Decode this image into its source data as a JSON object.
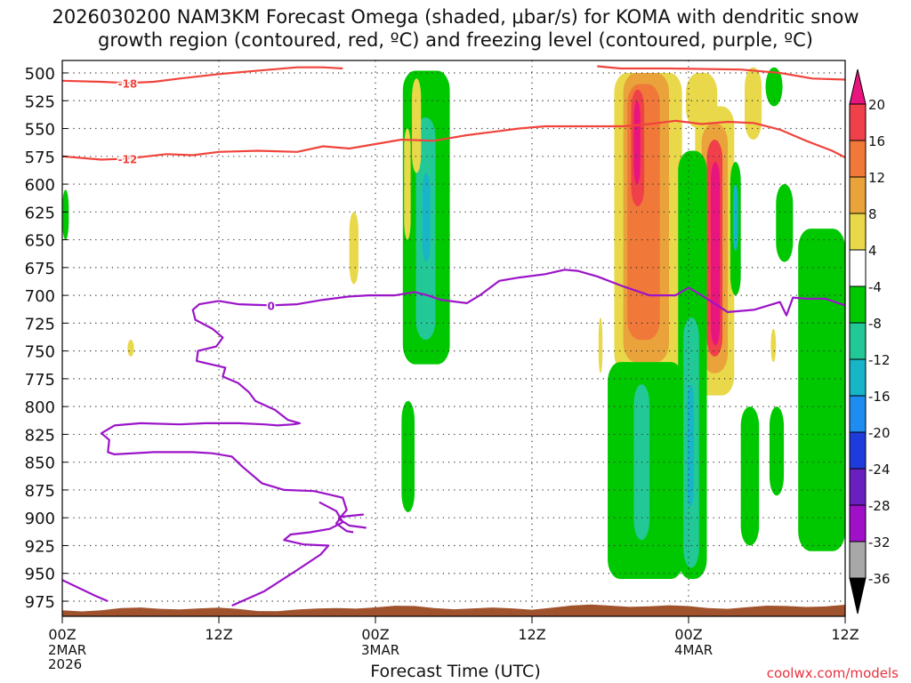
{
  "title": {
    "line1": "2026030200 NAM3KM Forecast Omega (shaded, μbar/s) for KOMA with dendritic snow",
    "line2": "growth region (contoured, red, ºC) and freezing level (contoured, purple, ºC)"
  },
  "xlabel": "Forecast Time (UTC)",
  "credit": "coolwx.com/models",
  "chart_data": {
    "type": "heatmap",
    "y_axis": {
      "label": "",
      "ticks": [
        500,
        525,
        550,
        575,
        600,
        625,
        650,
        675,
        700,
        725,
        750,
        775,
        800,
        825,
        850,
        875,
        900,
        925,
        950,
        975
      ],
      "range": [
        975,
        500
      ],
      "direction": "pressure decreasing upward",
      "grid": "dotted"
    },
    "x_axis": {
      "label": "Forecast Time (UTC)",
      "range_hours": [
        0,
        60
      ],
      "ticks": [
        {
          "hour": 0,
          "label": "00Z",
          "sub": [
            "2MAR",
            "2026"
          ]
        },
        {
          "hour": 12,
          "label": "12Z",
          "sub": []
        },
        {
          "hour": 24,
          "label": "00Z",
          "sub": [
            "3MAR"
          ]
        },
        {
          "hour": 36,
          "label": "12Z",
          "sub": []
        },
        {
          "hour": 48,
          "label": "00Z",
          "sub": [
            "4MAR"
          ]
        },
        {
          "hour": 60,
          "label": "12Z",
          "sub": []
        }
      ],
      "grid": "dotted"
    },
    "colorbar": {
      "labels": [
        20,
        16,
        12,
        8,
        4,
        -4,
        -8,
        -12,
        -16,
        -20,
        -24,
        -28,
        -32,
        -36
      ],
      "bins": [
        {
          "color": "#e8157f"
        },
        {
          "color": "#f0404a"
        },
        {
          "color": "#f07838"
        },
        {
          "color": "#e9a33a"
        },
        {
          "color": "#e8d84a"
        },
        {
          "color": "#ffffff"
        },
        {
          "color": "#00c800"
        },
        {
          "color": "#22c896"
        },
        {
          "color": "#18b4c8"
        },
        {
          "color": "#1e8cf0"
        },
        {
          "color": "#1e3cdc"
        },
        {
          "color": "#6a20c0"
        },
        {
          "color": "#a010c8"
        },
        {
          "color": "#a8a8a8"
        }
      ]
    },
    "omega_regions": [
      {
        "t0": 26.1,
        "t1": 29.7,
        "p0": 498,
        "p1": 762,
        "color": "#00c800"
      },
      {
        "t0": 27.1,
        "t1": 28.6,
        "p0": 540,
        "p1": 740,
        "color": "#22c896"
      },
      {
        "t0": 27.6,
        "t1": 28.2,
        "p0": 590,
        "p1": 670,
        "color": "#18b4c8"
      },
      {
        "t0": 26.8,
        "t1": 27.5,
        "p0": 505,
        "p1": 590,
        "color": "#e8d84a"
      },
      {
        "t0": 26.2,
        "t1": 26.7,
        "p0": 550,
        "p1": 650,
        "color": "#e8d84a"
      },
      {
        "t0": 22.0,
        "t1": 22.7,
        "p0": 625,
        "p1": 690,
        "color": "#e8d84a"
      },
      {
        "t0": 5.0,
        "t1": 5.5,
        "p0": 740,
        "p1": 755,
        "color": "#e8d84a"
      },
      {
        "t0": 26.0,
        "t1": 27.0,
        "p0": 795,
        "p1": 895,
        "color": "#00c800"
      },
      {
        "t0": 0.0,
        "t1": 0.5,
        "p0": 605,
        "p1": 650,
        "color": "#00c800"
      },
      {
        "t0": 42.3,
        "t1": 47.5,
        "p0": 500,
        "p1": 770,
        "color": "#e8d84a"
      },
      {
        "t0": 43.0,
        "t1": 46.5,
        "p0": 500,
        "p1": 760,
        "color": "#e9a33a"
      },
      {
        "t0": 43.3,
        "t1": 45.8,
        "p0": 510,
        "p1": 740,
        "color": "#f07838"
      },
      {
        "t0": 43.6,
        "t1": 44.6,
        "p0": 515,
        "p1": 620,
        "color": "#f0404a"
      },
      {
        "t0": 43.8,
        "t1": 44.3,
        "p0": 525,
        "p1": 600,
        "color": "#e8157f"
      },
      {
        "t0": 41.8,
        "t1": 47.6,
        "p0": 760,
        "p1": 955,
        "color": "#00c800"
      },
      {
        "t0": 43.8,
        "t1": 45.0,
        "p0": 780,
        "p1": 920,
        "color": "#22c896"
      },
      {
        "t0": 47.8,
        "t1": 50.2,
        "p0": 500,
        "p1": 550,
        "color": "#e8d84a"
      },
      {
        "t0": 48.5,
        "t1": 51.5,
        "p0": 530,
        "p1": 790,
        "color": "#e8d84a"
      },
      {
        "t0": 49.0,
        "t1": 51.0,
        "p0": 545,
        "p1": 770,
        "color": "#e9a33a"
      },
      {
        "t0": 49.4,
        "t1": 50.6,
        "p0": 560,
        "p1": 755,
        "color": "#f0404a"
      },
      {
        "t0": 49.7,
        "t1": 50.4,
        "p0": 580,
        "p1": 745,
        "color": "#e8157f"
      },
      {
        "t0": 47.2,
        "t1": 49.4,
        "p0": 570,
        "p1": 955,
        "color": "#00c800"
      },
      {
        "t0": 47.6,
        "t1": 48.8,
        "p0": 720,
        "p1": 945,
        "color": "#22c896"
      },
      {
        "t0": 47.9,
        "t1": 48.4,
        "p0": 780,
        "p1": 890,
        "color": "#18b4c8"
      },
      {
        "t0": 51.2,
        "t1": 52.0,
        "p0": 580,
        "p1": 700,
        "color": "#00c800"
      },
      {
        "t0": 51.4,
        "t1": 51.8,
        "p0": 600,
        "p1": 660,
        "color": "#18b4c8"
      },
      {
        "t0": 52.3,
        "t1": 53.6,
        "p0": 495,
        "p1": 560,
        "color": "#e8d84a"
      },
      {
        "t0": 53.9,
        "t1": 55.2,
        "p0": 495,
        "p1": 530,
        "color": "#00c800"
      },
      {
        "t0": 54.7,
        "t1": 56.0,
        "p0": 600,
        "p1": 670,
        "color": "#00c800"
      },
      {
        "t0": 52.0,
        "t1": 53.4,
        "p0": 800,
        "p1": 925,
        "color": "#00c800"
      },
      {
        "t0": 54.2,
        "t1": 55.3,
        "p0": 800,
        "p1": 880,
        "color": "#00c800"
      },
      {
        "t0": 56.4,
        "t1": 60.0,
        "p0": 640,
        "p1": 930,
        "color": "#00c800"
      },
      {
        "t0": 54.3,
        "t1": 54.7,
        "p0": 730,
        "p1": 760,
        "color": "#e8d84a"
      },
      {
        "t0": 41.1,
        "t1": 41.4,
        "p0": 720,
        "p1": 770,
        "color": "#e8d84a"
      }
    ],
    "ground": {
      "color": "#a0522d",
      "pressure_approx": 975
    },
    "dgz_contours": [
      {
        "level": -18,
        "label": "-18",
        "color": "#f0443c",
        "points": [
          [
            0,
            507
          ],
          [
            3,
            508
          ],
          [
            5,
            509
          ],
          [
            7,
            508
          ],
          [
            9,
            505
          ],
          [
            12,
            501
          ],
          [
            14,
            499
          ],
          [
            18,
            495
          ],
          [
            20,
            495
          ],
          [
            21.5,
            496
          ]
        ]
      },
      {
        "level": -18,
        "label": "",
        "color": "#f0443c",
        "points": [
          [
            41,
            494
          ],
          [
            42.8,
            496
          ],
          [
            44,
            496
          ],
          [
            46.5,
            496
          ],
          [
            52,
            497
          ],
          [
            55,
            500
          ],
          [
            57.5,
            505
          ],
          [
            60,
            506
          ]
        ]
      },
      {
        "level": -12,
        "label": "-12",
        "color": "#f0443c",
        "points": [
          [
            0,
            575
          ],
          [
            3,
            578
          ],
          [
            5,
            577
          ],
          [
            8,
            573
          ],
          [
            10,
            574
          ],
          [
            12,
            571
          ],
          [
            15,
            570
          ],
          [
            18,
            571
          ],
          [
            20,
            566
          ],
          [
            22,
            568
          ],
          [
            24,
            564
          ],
          [
            26,
            560
          ],
          [
            28.5,
            561
          ],
          [
            31,
            556
          ],
          [
            33,
            553
          ],
          [
            35,
            550
          ],
          [
            37,
            548
          ],
          [
            40,
            548
          ],
          [
            43,
            548
          ],
          [
            45,
            546
          ],
          [
            47,
            543
          ],
          [
            49,
            546
          ],
          [
            51,
            544
          ],
          [
            53,
            545
          ],
          [
            55,
            551
          ],
          [
            57,
            561
          ],
          [
            59,
            570
          ],
          [
            60,
            576
          ]
        ]
      }
    ],
    "freezing_contours": [
      {
        "level": 0,
        "label": "0",
        "color": "#9b14c8",
        "points": [
          [
            12,
            705
          ],
          [
            13.5,
            708
          ],
          [
            16,
            709
          ],
          [
            18,
            708
          ],
          [
            20,
            704
          ],
          [
            22,
            701
          ],
          [
            23.5,
            700
          ],
          [
            25.5,
            700
          ],
          [
            27,
            697
          ],
          [
            28,
            700
          ],
          [
            29,
            704
          ],
          [
            31,
            707
          ],
          [
            32,
            700
          ],
          [
            33.5,
            687
          ],
          [
            35,
            684
          ],
          [
            37,
            681
          ],
          [
            38.5,
            677
          ],
          [
            39.5,
            678
          ],
          [
            41,
            683
          ],
          [
            43,
            692
          ],
          [
            45,
            700
          ],
          [
            47,
            700
          ],
          [
            48,
            693
          ],
          [
            49,
            700
          ],
          [
            51,
            715
          ],
          [
            53,
            713
          ],
          [
            55,
            706
          ],
          [
            55.5,
            718
          ],
          [
            56,
            702
          ],
          [
            57,
            703
          ],
          [
            58.5,
            703
          ],
          [
            60,
            709
          ]
        ]
      },
      {
        "level": 0,
        "label": "",
        "color": "#9b14c8",
        "points": [
          [
            12,
            705
          ],
          [
            10.5,
            708
          ],
          [
            10,
            713
          ],
          [
            10.2,
            722
          ],
          [
            11.5,
            730
          ],
          [
            12.3,
            738
          ],
          [
            11.8,
            746
          ],
          [
            10.4,
            750
          ],
          [
            10.3,
            759
          ],
          [
            12.5,
            765
          ],
          [
            12.3,
            773
          ],
          [
            13.5,
            779
          ],
          [
            14.3,
            787
          ],
          [
            14.8,
            795
          ],
          [
            16.3,
            803
          ],
          [
            17.3,
            812
          ],
          [
            18.2,
            815
          ],
          [
            17.7,
            816
          ],
          [
            16.5,
            817
          ],
          [
            15.5,
            816
          ],
          [
            13.5,
            815
          ],
          [
            11,
            815
          ],
          [
            9,
            816
          ],
          [
            6,
            815
          ],
          [
            4,
            817
          ],
          [
            3,
            824
          ],
          [
            3.6,
            830
          ],
          [
            3.5,
            841
          ],
          [
            4,
            843
          ],
          [
            7,
            841
          ],
          [
            10,
            841
          ],
          [
            11.5,
            842
          ],
          [
            13,
            845
          ],
          [
            13.8,
            854
          ],
          [
            15.3,
            869
          ],
          [
            17,
            875
          ],
          [
            19.3,
            876
          ],
          [
            21.5,
            882
          ],
          [
            21.8,
            893
          ],
          [
            21.2,
            901
          ],
          [
            22,
            907
          ],
          [
            23.3,
            909
          ]
        ]
      },
      {
        "level": 0,
        "label": "",
        "color": "#9b14c8",
        "points": [
          [
            0,
            956
          ],
          [
            2.5,
            970
          ],
          [
            3.5,
            975
          ]
        ]
      },
      {
        "level": 0,
        "label": "",
        "color": "#9b14c8",
        "points": [
          [
            23.1,
            897
          ],
          [
            21.4,
            899
          ],
          [
            21,
            905
          ],
          [
            21.8,
            912
          ],
          [
            22.3,
            913
          ]
        ]
      },
      {
        "level": 0,
        "label": "",
        "color": "#9b14c8",
        "points": [
          [
            19.7,
            886
          ],
          [
            21,
            894
          ],
          [
            21.5,
            904
          ],
          [
            20.5,
            910
          ],
          [
            19,
            913
          ],
          [
            17.5,
            915
          ],
          [
            17,
            920
          ],
          [
            18.5,
            924
          ],
          [
            20.4,
            925
          ],
          [
            19.8,
            933
          ],
          [
            18,
            947
          ],
          [
            15.5,
            966
          ],
          [
            13,
            979
          ]
        ]
      }
    ]
  }
}
